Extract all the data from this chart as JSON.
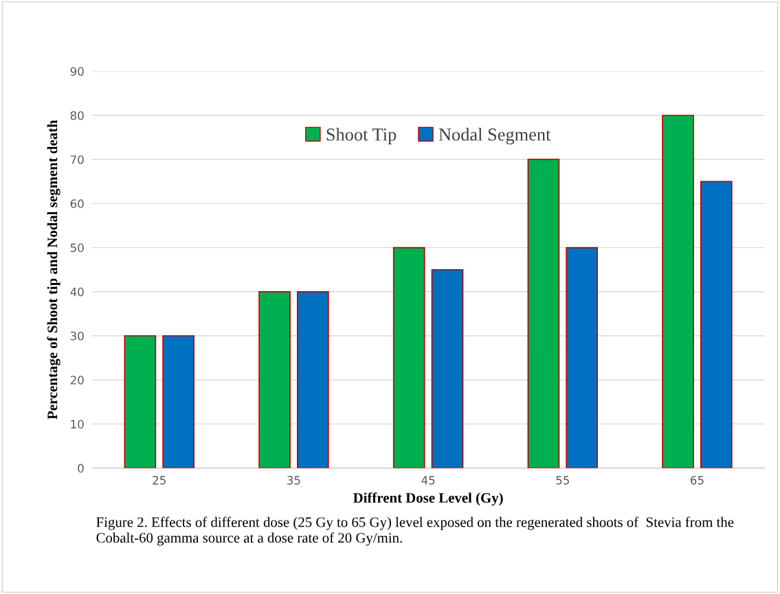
{
  "chart_data": {
    "type": "bar",
    "categories": [
      "25",
      "35",
      "45",
      "55",
      "65"
    ],
    "series": [
      {
        "name": "Shoot Tip",
        "color": "#00b050",
        "values": [
          30,
          40,
          50,
          70,
          80
        ]
      },
      {
        "name": "Nodal Segment",
        "color": "#0070c0",
        "values": [
          30,
          40,
          45,
          50,
          65
        ]
      }
    ],
    "xlabel": "Diffrent Dose Level (Gy)",
    "ylabel": "Percentage of Shoot tip and Nodal segment death",
    "ylim": [
      0,
      90
    ],
    "yticks": [
      0,
      10,
      20,
      30,
      40,
      50,
      60,
      70,
      80,
      90
    ],
    "grid": "y",
    "legend": "top",
    "annotations": [
      "Figure 2. Effects of different dose (25 Gy to 65 Gy) level exposed on the regenerated shoots of  Stevia from the Cobalt-60 gamma source at a dose rate of 20 Gy/min."
    ]
  }
}
